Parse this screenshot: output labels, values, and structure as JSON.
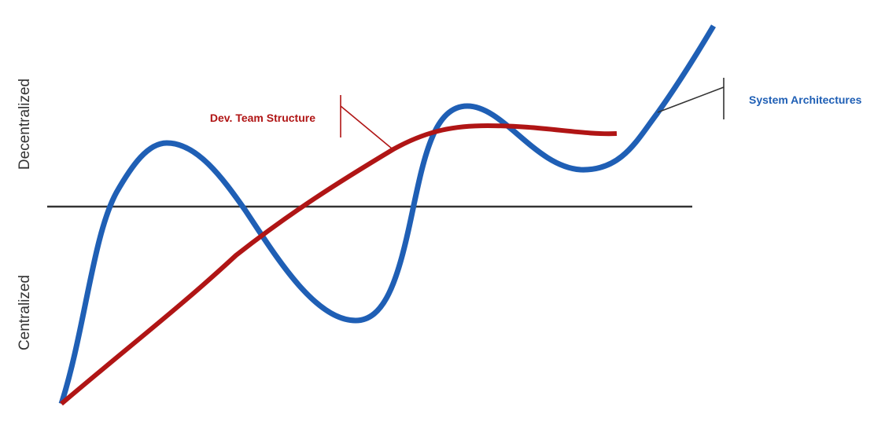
{
  "diagram": {
    "y_labels": {
      "top": "Decentralized",
      "bottom": "Centralized"
    },
    "series": [
      {
        "id": "system",
        "name": "System Architectures",
        "color": "#1f5fb5"
      },
      {
        "id": "team",
        "name": "Dev. Team Structure",
        "color": "#b01515"
      }
    ],
    "baseline_color": "#333333"
  }
}
